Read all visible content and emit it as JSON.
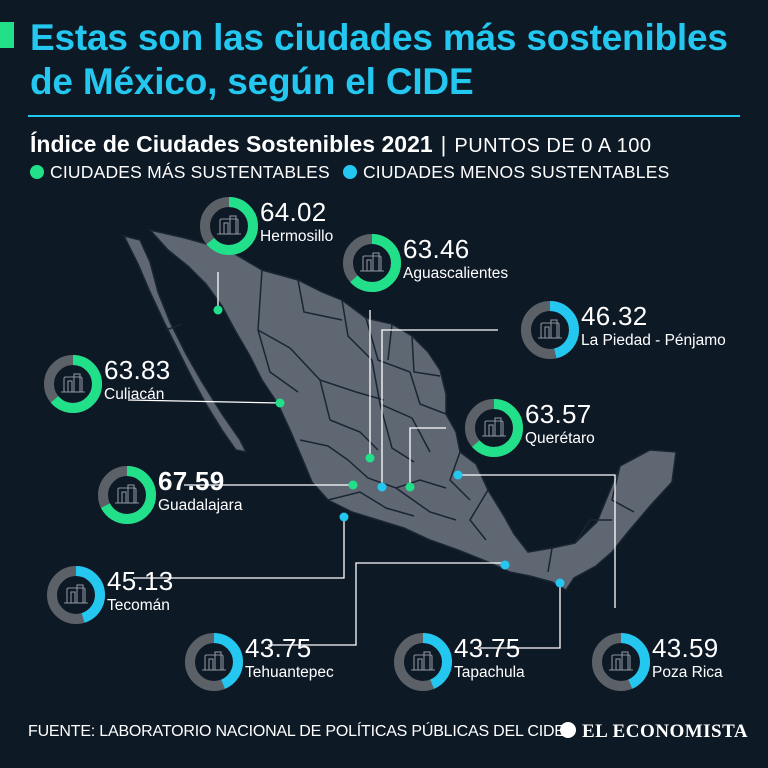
{
  "title": "Estas son las ciudades más sostenibles de México, según el CIDE",
  "subtitle": {
    "main": "Índice de Ciudades Sostenibles 2021",
    "separator": "|",
    "units": "PUNTOS DE 0 A 100"
  },
  "legend": [
    {
      "label": "CIUDADES MÁS SUSTENTABLES",
      "color": "#22e08a"
    },
    {
      "label": "CIUDADES MENOS SUSTENTABLES",
      "color": "#23c7ef"
    }
  ],
  "colors": {
    "background": "#0e1926",
    "map_fill": "#5f6772",
    "map_border": "#1a2533",
    "track": "#5c6168",
    "green": "#22e08a",
    "blue": "#23c7ef"
  },
  "cities": [
    {
      "name": "Hermosillo",
      "value": "64.02",
      "score": 64.02,
      "group": "more"
    },
    {
      "name": "Aguascalientes",
      "value": "63.46",
      "score": 63.46,
      "group": "more"
    },
    {
      "name": "La Piedad - Pénjamo",
      "value": "46.32",
      "score": 46.32,
      "group": "less"
    },
    {
      "name": "Culiacán",
      "value": "63.83",
      "score": 63.83,
      "group": "more"
    },
    {
      "name": "Querétaro",
      "value": "63.57",
      "score": 63.57,
      "group": "more"
    },
    {
      "name": "Guadalajara",
      "value": "67.59",
      "score": 67.59,
      "group": "more"
    },
    {
      "name": "Tecomán",
      "value": "45.13",
      "score": 45.13,
      "group": "less"
    },
    {
      "name": "Tehuantepec",
      "value": "43.75",
      "score": 43.75,
      "group": "less"
    },
    {
      "name": "Tapachula",
      "value": "43.75",
      "score": 43.75,
      "group": "less"
    },
    {
      "name": "Poza Rica",
      "value": "43.59",
      "score": 43.59,
      "group": "less"
    }
  ],
  "footer": {
    "source": "FUENTE: LABORATORIO NACIONAL DE POLÍTICAS PÚBLICAS DEL CIDE",
    "brand": "EL ECONOMISTA"
  }
}
